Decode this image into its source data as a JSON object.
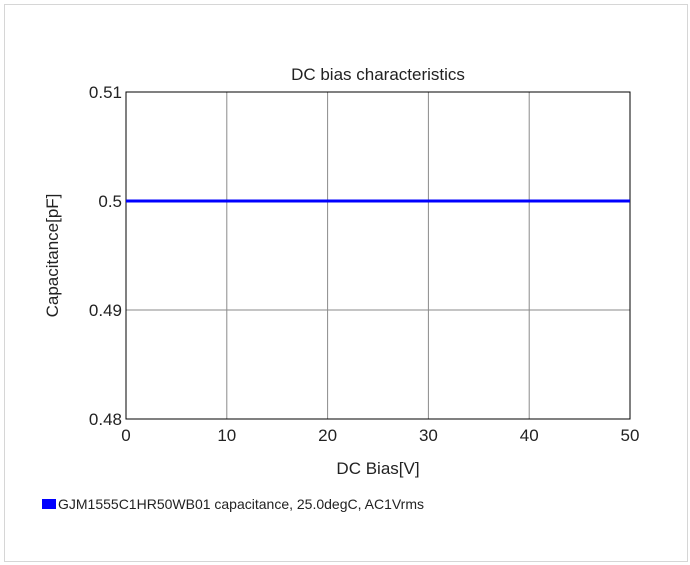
{
  "chart_data": {
    "type": "line",
    "title": "DC bias characteristics",
    "xlabel": "DC Bias[V]",
    "ylabel": "Capacitance[pF]",
    "xlim": [
      0,
      50
    ],
    "ylim": [
      0.48,
      0.51
    ],
    "x_ticks": [
      0,
      10,
      20,
      30,
      40,
      50
    ],
    "y_ticks": [
      0.48,
      0.49,
      0.5,
      0.51
    ],
    "y_tick_labels": [
      "0.48",
      "0.49",
      "0.5",
      "0.51"
    ],
    "grid": true,
    "legend_position": "bottom-left",
    "series": [
      {
        "name": "GJM1555C1HR50WB01 capacitance, 25.0degC, AC1Vrms",
        "color": "#0000ff",
        "x": [
          0,
          5,
          10,
          15,
          20,
          25,
          30,
          35,
          40,
          45,
          50
        ],
        "y": [
          0.5,
          0.5,
          0.5,
          0.5,
          0.5,
          0.5,
          0.5,
          0.5,
          0.5,
          0.5,
          0.5
        ]
      }
    ]
  }
}
